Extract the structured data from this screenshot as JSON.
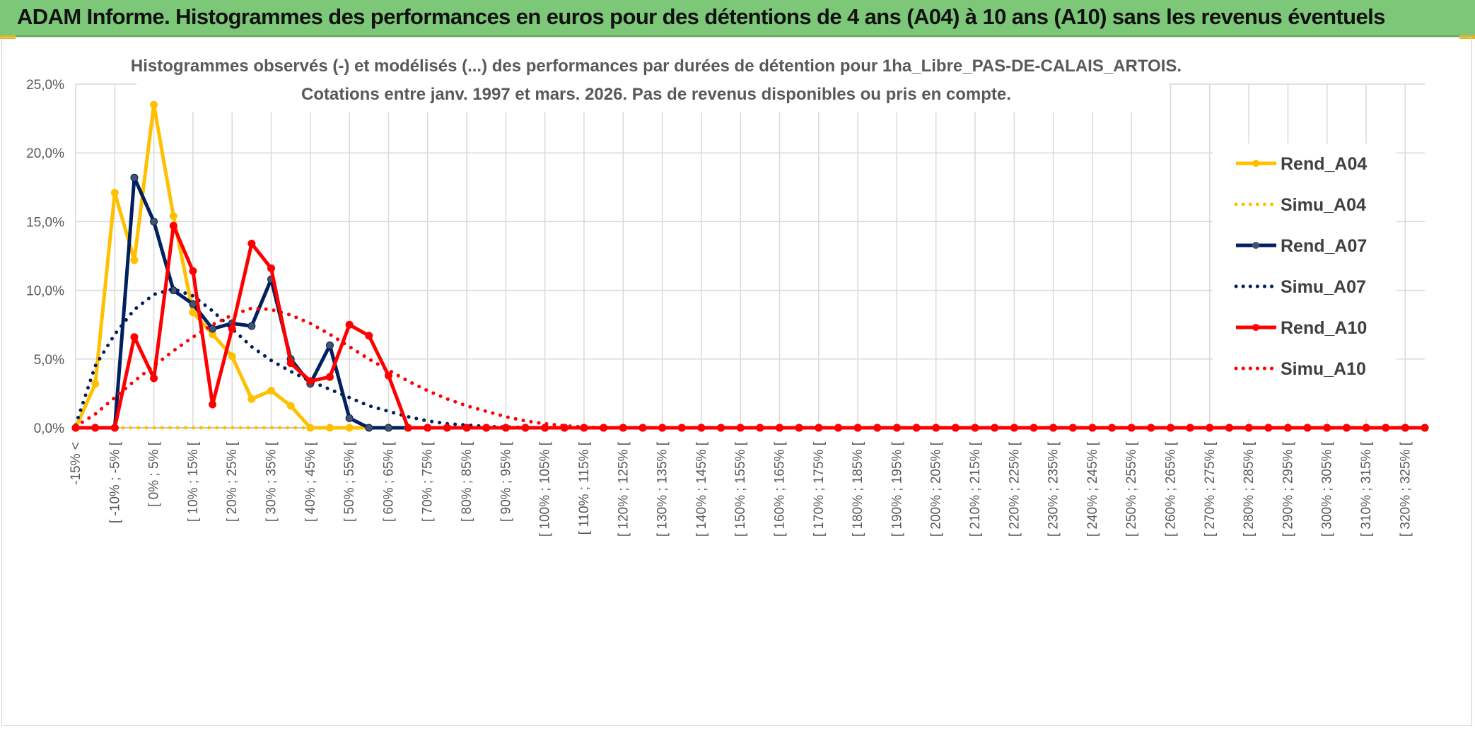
{
  "header": {
    "title": "ADAM Informe. Histogrammes des performances en euros pour des détentions de 4 ans (A04) à 10 ans (A10) sans les revenus éventuels"
  },
  "colors": {
    "banner": "#7dc878",
    "a04": "#ffc000",
    "a07": "#002060",
    "a10": "#ff0000",
    "grid": "#d9d9d9"
  },
  "chart_data": {
    "type": "line",
    "subtitle_lines": [
      "Histogrammes observés (-) et modélisés (...) des performances par durées de détention pour 1ha_Libre_PAS-DE-CALAIS_ARTOIS.",
      "Cotations entre janv. 1997 et mars. 2026. Pas de revenus disponibles ou pris en compte."
    ],
    "y_ticks": [
      "0,0%",
      "5,0%",
      "10,0%",
      "15,0%",
      "20,0%",
      "25,0%"
    ],
    "ylim": [
      0,
      25
    ],
    "x_labels": [
      "-15% <",
      "[ -10% ; -5% [",
      "[ 0% ; 5% [",
      "[ 10% ; 15% [",
      "[ 20% ; 25% [",
      "[ 30% ; 35% [",
      "[ 40% ; 45% [",
      "[ 50% ; 55% [",
      "[ 60% ; 65% [",
      "[ 70% ; 75% [",
      "[ 80% ; 85% [",
      "[ 90% ; 95% [",
      "[ 100% ; 105% [",
      "[ 110% ; 115% [",
      "[ 120% ; 125% [",
      "[ 130% ; 135% [",
      "[ 140% ; 145% [",
      "[ 150% ; 155% [",
      "[ 160% ; 165% [",
      "[ 170% ; 175% [",
      "[ 180% ; 185% [",
      "[ 190% ; 195% [",
      "[ 200% ; 205% [",
      "[ 210% ; 215% [",
      "[ 220% ; 225% [",
      "[ 230% ; 235% [",
      "[ 240% ; 245% [",
      "[ 250% ; 255% [",
      "[ 260% ; 265% [",
      "[ 270% ; 275% [",
      "[ 280% ; 285% [",
      "[ 290% ; 295% [",
      "[ 300% ; 305% [",
      "[ 310% ; 315% [",
      "[ 320% ; 325% ["
    ],
    "n_points": 70,
    "series": [
      {
        "name": "Rend_A04",
        "style": "solid",
        "color": "#ffc000",
        "markers": true,
        "values": [
          0,
          3.2,
          17.1,
          12.2,
          23.5,
          15.4,
          8.4,
          6.8,
          5.2,
          2.1,
          2.7,
          1.6,
          0,
          0,
          0
        ]
      },
      {
        "name": "Simu_A04",
        "style": "dotted",
        "color": "#ffc000",
        "markers": false,
        "values": [
          0,
          0,
          0,
          0,
          0,
          0,
          0,
          0,
          0,
          0,
          0,
          0,
          0,
          0,
          0
        ]
      },
      {
        "name": "Rend_A07",
        "style": "solid",
        "color": "#002060",
        "markers": true,
        "values": [
          0,
          0,
          0,
          18.2,
          15.0,
          10.0,
          9.0,
          7.2,
          7.6,
          7.4,
          10.8,
          5.0,
          3.2,
          6.0,
          0.7,
          0,
          0
        ]
      },
      {
        "name": "Simu_A07",
        "style": "dotted",
        "color": "#002060",
        "markers": false,
        "values": [
          0.2,
          4.5,
          6.8,
          8.6,
          9.7,
          10.1,
          9.6,
          8.5,
          7.2,
          5.9,
          4.9,
          4.1,
          3.4,
          2.8,
          2.2,
          1.6,
          1.2,
          0.8,
          0.5,
          0.3,
          0.2,
          0.1,
          0.05,
          0.02,
          0
        ]
      },
      {
        "name": "Rend_A10",
        "style": "solid",
        "color": "#ff0000",
        "markers": true,
        "values": [
          0,
          0,
          0,
          6.6,
          3.6,
          14.7,
          11.4,
          1.7,
          7.2,
          13.4,
          11.6,
          4.7,
          3.4,
          3.7,
          7.5,
          6.7,
          3.8,
          0
        ]
      },
      {
        "name": "Simu_A10",
        "style": "dotted",
        "color": "#ff0000",
        "markers": false,
        "values": [
          0.1,
          1.0,
          2.2,
          3.4,
          4.5,
          5.6,
          6.6,
          7.5,
          8.2,
          8.7,
          8.6,
          8.2,
          7.6,
          6.8,
          5.9,
          5.0,
          4.2,
          3.4,
          2.7,
          2.1,
          1.6,
          1.2,
          0.8,
          0.5,
          0.3,
          0.15,
          0.05,
          0
        ]
      }
    ],
    "legend": [
      "Rend_A04",
      "Simu_A04",
      "Rend_A07",
      "Simu_A07",
      "Rend_A10",
      "Simu_A10"
    ],
    "legend_position": "right"
  }
}
